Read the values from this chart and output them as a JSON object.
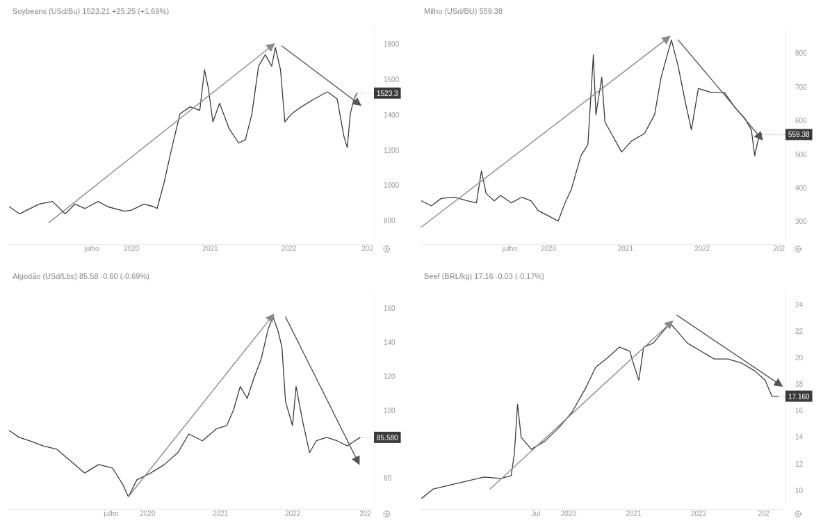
{
  "chart_data": [
    {
      "type": "line",
      "title": "Soybeans (USd/Bu) 1523.21 +25.25 (+1.69%)",
      "ylim": [
        700,
        1900
      ],
      "yticks": [
        800,
        1000,
        1200,
        1400,
        1600,
        1800
      ],
      "xlim": [
        "2018-06-10",
        "2023-01-20"
      ],
      "xticks": [
        {
          "value": "2019-07-01",
          "label": "julho"
        },
        {
          "value": "2020-01-01",
          "label": "2020"
        },
        {
          "value": "2021-01-01",
          "label": "2021"
        },
        {
          "value": "2022-01-01",
          "label": "2022"
        },
        {
          "value": "2023-01-01",
          "label": "202"
        }
      ],
      "annotations": [
        {
          "text": "1523.3",
          "x": "2022-11-15",
          "y": 1523
        }
      ],
      "series": [
        {
          "color": "#3a3a3a",
          "x": [
            "2018-06-15",
            "2018-08-01",
            "2018-11-01",
            "2019-01-01",
            "2019-03-01",
            "2019-04-15",
            "2019-06-01",
            "2019-08-01",
            "2019-09-15",
            "2019-12-01",
            "2020-01-01",
            "2020-03-01",
            "2020-04-15",
            "2020-05-01",
            "2020-06-01",
            "2020-07-05",
            "2020-08-15",
            "2020-10-01",
            "2020-11-15",
            "2020-12-07",
            "2020-12-25",
            "2021-01-15",
            "2021-02-15",
            "2021-04-01",
            "2021-05-15",
            "2021-06-15",
            "2021-07-15",
            "2021-08-15",
            "2021-09-15",
            "2021-10-15",
            "2021-11-01",
            "2021-11-25",
            "2021-12-15",
            "2022-01-15",
            "2022-03-01",
            "2022-05-01",
            "2022-07-01",
            "2022-08-15",
            "2022-09-15",
            "2022-10-01",
            "2022-10-15",
            "2022-11-01",
            "2022-11-15"
          ],
          "values": [
            880,
            840,
            895,
            910,
            840,
            895,
            870,
            910,
            880,
            855,
            860,
            895,
            880,
            870,
            1010,
            1195,
            1405,
            1445,
            1425,
            1655,
            1550,
            1360,
            1465,
            1320,
            1240,
            1260,
            1405,
            1675,
            1740,
            1675,
            1780,
            1655,
            1360,
            1405,
            1445,
            1490,
            1530,
            1490,
            1280,
            1215,
            1405,
            1490,
            1523
          ]
        },
        {
          "type": "line",
          "color": "#8a8a8a",
          "x": [
            "2018-12-15",
            "2021-10-15"
          ],
          "values": [
            790,
            1790
          ]
        },
        {
          "type": "line",
          "color": "#555555",
          "x": [
            "2021-12-01",
            "2022-11-20"
          ],
          "values": [
            1790,
            1465
          ]
        }
      ]
    },
    {
      "type": "line",
      "title": "Milho (USd/BU) 559.38",
      "ylim": [
        250,
        880
      ],
      "yticks": [
        300,
        400,
        500,
        600,
        700,
        800
      ],
      "xlim": [
        "2018-05-01",
        "2023-01-20"
      ],
      "xticks": [
        {
          "value": "2019-07-01",
          "label": "julho"
        },
        {
          "value": "2020-01-01",
          "label": "2020"
        },
        {
          "value": "2021-01-01",
          "label": "2021"
        },
        {
          "value": "2022-01-01",
          "label": "2022"
        },
        {
          "value": "2023-01-01",
          "label": "202"
        }
      ],
      "annotations": [
        {
          "text": "559.38",
          "x": "2022-10-12",
          "y": 559
        }
      ],
      "series": [
        {
          "color": "#3a3a3a",
          "x": [
            "2018-05-08",
            "2018-06-25",
            "2018-08-10",
            "2018-10-10",
            "2018-12-15",
            "2019-01-25",
            "2019-02-18",
            "2019-03-12",
            "2019-04-20",
            "2019-05-20",
            "2019-07-10",
            "2019-08-28",
            "2019-10-12",
            "2019-11-15",
            "2020-01-01",
            "2020-02-18",
            "2020-03-18",
            "2020-04-20",
            "2020-06-05",
            "2020-07-08",
            "2020-08-03",
            "2020-08-15",
            "2020-09-12",
            "2020-09-27",
            "2020-10-28",
            "2020-12-15",
            "2021-02-01",
            "2021-04-03",
            "2021-05-21",
            "2021-06-21",
            "2021-08-09",
            "2021-09-10",
            "2021-10-12",
            "2021-11-12",
            "2021-12-15",
            "2022-02-15",
            "2022-04-18",
            "2022-06-06",
            "2022-07-24",
            "2022-08-24",
            "2022-09-09",
            "2022-09-24",
            "2022-10-12"
          ],
          "values": [
            362,
            347,
            369,
            373,
            362,
            356,
            451,
            384,
            362,
            378,
            356,
            373,
            362,
            333,
            318,
            302,
            351,
            396,
            496,
            529,
            796,
            618,
            729,
            596,
            562,
            507,
            540,
            562,
            618,
            729,
            840,
            762,
            662,
            573,
            696,
            684,
            684,
            640,
            607,
            573,
            496,
            540,
            562
          ]
        },
        {
          "type": "line",
          "color": "#8a8a8a",
          "x": [
            "2018-05-08",
            "2021-07-20"
          ],
          "values": [
            284,
            844
          ]
        },
        {
          "type": "line",
          "color": "#555555",
          "x": [
            "2021-09-10",
            "2022-10-05"
          ],
          "values": [
            840,
            551
          ]
        }
      ]
    },
    {
      "type": "line",
      "title": "Algodão (USd/Lbs) 85.58 -0.60 (-0.69%)",
      "ylim": [
        45,
        170
      ],
      "yticks": [
        60,
        100,
        120,
        140,
        160
      ],
      "xlim": [
        "2018-02-01",
        "2023-02-01"
      ],
      "xticks": [
        {
          "value": "2019-07-01",
          "label": "julho"
        },
        {
          "value": "2020-01-01",
          "label": "2020"
        },
        {
          "value": "2021-01-01",
          "label": "2021"
        },
        {
          "value": "2022-01-01",
          "label": "2022"
        },
        {
          "value": "2023-01-01",
          "label": "202"
        }
      ],
      "annotations": [
        {
          "text": "85.580",
          "x": "2022-12-07",
          "y": 84
        }
      ],
      "series": [
        {
          "color": "#3a3a3a",
          "x": [
            "2018-02-05",
            "2018-03-28",
            "2018-05-18",
            "2018-07-27",
            "2018-10-03",
            "2018-12-12",
            "2019-02-20",
            "2019-05-01",
            "2019-07-10",
            "2019-09-01",
            "2019-09-28",
            "2019-11-10",
            "2020-01-18",
            "2020-03-27",
            "2020-06-03",
            "2020-07-28",
            "2020-10-05",
            "2020-12-13",
            "2021-02-04",
            "2021-03-10",
            "2021-04-13",
            "2021-05-18",
            "2021-06-21",
            "2021-07-27",
            "2021-09-01",
            "2021-09-25",
            "2021-10-22",
            "2021-11-09",
            "2021-11-27",
            "2022-01-01",
            "2022-01-19",
            "2022-02-22",
            "2022-03-28",
            "2022-05-01",
            "2022-06-22",
            "2022-08-13",
            "2022-10-04",
            "2022-12-07"
          ],
          "values": [
            88,
            84,
            82,
            79,
            77,
            70,
            63,
            68,
            66,
            56,
            49,
            59,
            63,
            68,
            75,
            86,
            82,
            89,
            91,
            100,
            114,
            107,
            119,
            130,
            148,
            155,
            146,
            137,
            105,
            91,
            114,
            93,
            75,
            82,
            84,
            82,
            79,
            84
          ]
        },
        {
          "type": "line",
          "color": "#8a8a8a",
          "x": [
            "2019-09-28",
            "2021-09-18"
          ],
          "values": [
            49,
            155
          ]
        },
        {
          "type": "line",
          "color": "#555555",
          "x": [
            "2021-11-27",
            "2022-11-25"
          ],
          "values": [
            155,
            70
          ]
        }
      ]
    },
    {
      "type": "line",
      "title": "Beef (BRL/kg) 17.16 -0.03 (-0.17%)",
      "ylim": [
        9,
        25
      ],
      "yticks": [
        10,
        12,
        14,
        16,
        18,
        20,
        22,
        24
      ],
      "xlim": [
        "2017-09-20",
        "2023-04-20"
      ],
      "xticks": [
        {
          "value": "2019-07-01",
          "label": "Jul"
        },
        {
          "value": "2020-01-01",
          "label": "2020"
        },
        {
          "value": "2021-01-01",
          "label": "2021"
        },
        {
          "value": "2022-01-01",
          "label": "2022"
        },
        {
          "value": "2023-01-01",
          "label": "202"
        }
      ],
      "annotations": [
        {
          "text": "17.160",
          "x": "2023-03-28",
          "y": 17.1
        }
      ],
      "series": [
        {
          "color": "#3a3a3a",
          "x": [
            "2017-10-01",
            "2017-12-04",
            "2018-03-08",
            "2018-06-12",
            "2018-09-15",
            "2018-12-20",
            "2019-02-15",
            "2019-03-05",
            "2019-03-23",
            "2019-04-12",
            "2019-06-08",
            "2019-08-23",
            "2019-11-08",
            "2020-01-23",
            "2020-04-08",
            "2020-06-04",
            "2020-08-01",
            "2020-10-15",
            "2020-12-12",
            "2021-01-08",
            "2021-02-01",
            "2021-02-28",
            "2021-04-23",
            "2021-06-18",
            "2021-07-27",
            "2021-09-04",
            "2021-11-01",
            "2022-01-15",
            "2022-04-01",
            "2022-06-15",
            "2022-09-01",
            "2022-11-15",
            "2023-01-12",
            "2023-02-18",
            "2023-03-28"
          ],
          "values": [
            9.4,
            10.1,
            10.4,
            10.7,
            11.0,
            10.9,
            11.1,
            12.8,
            16.5,
            14.0,
            13.1,
            13.7,
            14.7,
            15.9,
            17.7,
            19.3,
            19.9,
            20.8,
            20.5,
            19.3,
            18.3,
            20.8,
            21.1,
            22.0,
            22.6,
            22.0,
            21.1,
            20.5,
            19.9,
            19.9,
            19.6,
            19.0,
            18.3,
            17.1,
            17.1
          ]
        },
        {
          "type": "line",
          "color": "#8a8a8a",
          "x": [
            "2018-10-20",
            "2021-07-27"
          ],
          "values": [
            10.1,
            22.6
          ]
        },
        {
          "type": "line",
          "color": "#555555",
          "x": [
            "2021-09-04",
            "2023-04-01"
          ],
          "values": [
            23.2,
            18.0
          ]
        }
      ]
    }
  ]
}
